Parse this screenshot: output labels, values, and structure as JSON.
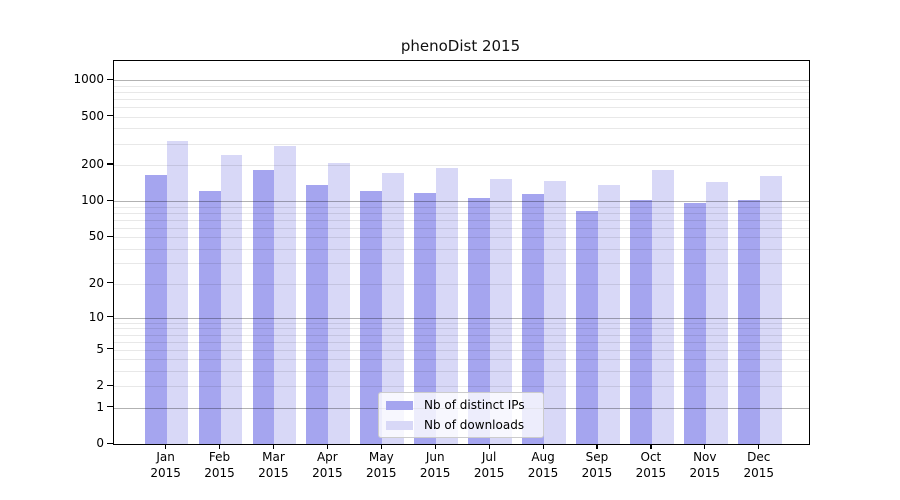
{
  "title": "phenoDist 2015",
  "chart_data": {
    "type": "bar",
    "title": "phenoDist 2015",
    "categories": [
      "Jan",
      "Feb",
      "Mar",
      "Apr",
      "May",
      "Jun",
      "Jul",
      "Aug",
      "Sep",
      "Oct",
      "Nov",
      "Dec"
    ],
    "year_label": "2015",
    "series": [
      {
        "name": "Nb of distinct IPs",
        "color": "#a5a5ef",
        "values": [
          165,
          122,
          180,
          137,
          121,
          116,
          106,
          115,
          82,
          102,
          96,
          102
        ]
      },
      {
        "name": "Nb of downloads",
        "color": "#d8d8f7",
        "values": [
          313,
          240,
          287,
          207,
          170,
          187,
          152,
          147,
          137,
          180,
          144,
          161
        ]
      }
    ],
    "xlabel": "",
    "ylabel": "",
    "yscale": "log1p",
    "yticks": [
      0,
      1,
      2,
      5,
      10,
      20,
      50,
      100,
      200,
      500,
      1000
    ],
    "ylim": [
      0,
      1436
    ],
    "grid": "horizontal major (decades) + minor (2-9 multiples), drawn over bars",
    "legend_position": "inside lower-center"
  },
  "colors": {
    "bar_distinct_ips": "#a5a5ef",
    "bar_downloads": "#d8d8f7",
    "major_grid": "#b3b3b3",
    "minor_grid": "#e8e8e8",
    "axis": "#000000",
    "background": "#ffffff"
  }
}
